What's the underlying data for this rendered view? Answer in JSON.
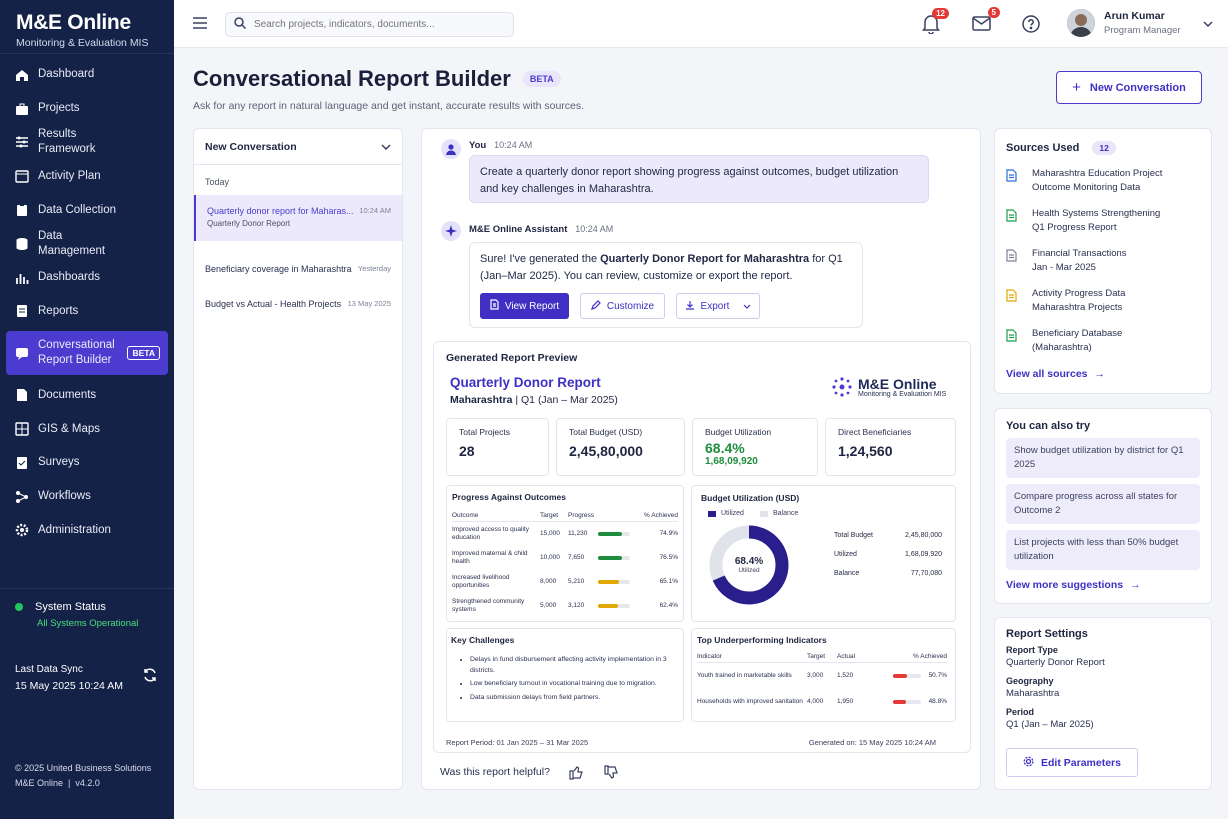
{
  "app": {
    "title": "M&E Online",
    "subtitle": "Monitoring & Evaluation MIS"
  },
  "nav": [
    {
      "label": "Dashboard",
      "icon": "home-icon"
    },
    {
      "label": "Projects",
      "icon": "briefcase-icon"
    },
    {
      "label": "Results Framework",
      "icon": "sliders-icon"
    },
    {
      "label": "Activity Plan",
      "icon": "calendar-icon"
    },
    {
      "label": "Data Collection",
      "icon": "clipboard-icon"
    },
    {
      "label": "Data Management",
      "icon": "database-icon"
    },
    {
      "label": "Dashboards",
      "icon": "bar-chart-icon"
    },
    {
      "label": "Reports",
      "icon": "report-icon"
    },
    {
      "label": "Conversational Report Builder",
      "icon": "chat-icon",
      "badge": "BETA"
    },
    {
      "label": "Documents",
      "icon": "document-icon"
    },
    {
      "label": "GIS & Maps",
      "icon": "map-icon"
    },
    {
      "label": "Surveys",
      "icon": "checklist-icon"
    },
    {
      "label": "Workflows",
      "icon": "workflow-icon"
    },
    {
      "label": "Administration",
      "icon": "gear-icon"
    }
  ],
  "system": {
    "label": "System Status",
    "status": "All Systems Operational",
    "sync_label": "Last Data Sync",
    "sync_time": "15 May 2025 10:24 AM"
  },
  "footer": {
    "copyright": "© 2025 United Business Solutions",
    "product": "M&E Online",
    "version": "v4.2.0"
  },
  "search": {
    "placeholder": "Search projects, indicators, documents..."
  },
  "notifications": {
    "count": "12"
  },
  "messages": {
    "count": "5"
  },
  "user": {
    "name": "Arun Kumar",
    "role": "Program Manager"
  },
  "page": {
    "title": "Conversational Report Builder",
    "badge": "BETA",
    "subtitle": "Ask for any report in natural language and get instant, accurate results with sources.",
    "new_button": "New Conversation"
  },
  "conversations": {
    "selector": "New Conversation",
    "group": "Today",
    "items": [
      {
        "title": "Quarterly donor report for Maharas...",
        "sub": "Quarterly Donor Report",
        "time": "10:24 AM"
      },
      {
        "title": "Beneficiary coverage in Maharashtra",
        "time": "Yesterday"
      },
      {
        "title": "Budget vs Actual - Health Projects",
        "time": "13 May 2025"
      }
    ]
  },
  "chat": {
    "user_name": "You",
    "user_time": "10:24 AM",
    "user_msg": "Create a quarterly donor report showing progress against outcomes, budget utilization and key challenges in Maharashtra.",
    "assistant_name": "M&E Online Assistant",
    "assistant_time": "10:24 AM",
    "assistant_pre": "Sure! I've generated the ",
    "assistant_bold": "Quarterly Donor Report for Maharashtra",
    "assistant_post": " for Q1 (Jan–Mar 2025). You can review, customize or export the report.",
    "view_btn": "View Report",
    "customize_btn": "Customize",
    "export_btn": "Export"
  },
  "preview": {
    "heading": "Generated Report Preview",
    "report_title": "Quarterly Donor Report",
    "region": "Maharashtra",
    "period": "Q1 (Jan – Mar 2025)",
    "logo_title": "M&E Online",
    "logo_sub": "Monitoring & Evaluation MIS",
    "kpis": [
      {
        "label": "Total Projects",
        "value": "28"
      },
      {
        "label": "Total Budget (USD)",
        "value": "2,45,80,000"
      },
      {
        "label": "Budget Utilization",
        "value": "68.4%",
        "sub": "1,68,09,920"
      },
      {
        "label": "Direct Beneficiaries",
        "value": "1,24,560"
      }
    ],
    "progress": {
      "title": "Progress Against Outcomes",
      "cols": [
        "Outcome",
        "Target",
        "Progress",
        "% Achieved"
      ],
      "rows": [
        {
          "outcome": "Improved access to quality education",
          "target": "15,000",
          "progress": "11,230",
          "pct": "74.9%",
          "pct_value": 74.9,
          "color": "#1e8e3e"
        },
        {
          "outcome": "Improved maternal & child health",
          "target": "10,000",
          "progress": "7,650",
          "pct": "76.5%",
          "pct_value": 76.5,
          "color": "#1e8e3e"
        },
        {
          "outcome": "Increased livelihood opportunities",
          "target": "8,000",
          "progress": "5,210",
          "pct": "65.1%",
          "pct_value": 65.1,
          "color": "#e0a800"
        },
        {
          "outcome": "Strengthened community systems",
          "target": "5,000",
          "progress": "3,120",
          "pct": "62.4%",
          "pct_value": 62.4,
          "color": "#e0a800"
        }
      ]
    },
    "budget": {
      "title": "Budget Utilization (USD)",
      "legend_used": "Utilized",
      "legend_balance": "Balance",
      "donut_value": "68.4%",
      "donut_value_num": 68.4,
      "donut_label": "Utilized",
      "rows": [
        {
          "label": "Total Budget",
          "value": "2,45,80,000"
        },
        {
          "label": "Utilized",
          "value": "1,68,09,920"
        },
        {
          "label": "Balance",
          "value": "77,70,080"
        }
      ]
    },
    "challenges": {
      "title": "Key Challenges",
      "items": [
        "Delays in fund disbursement affecting activity implementation in 3 districts.",
        "Low beneficiary turnout in vocational training due to migration.",
        "Data submission delays from field partners."
      ]
    },
    "under": {
      "title": "Top Underperforming Indicators",
      "cols": [
        "Indicator",
        "Target",
        "Actual",
        "% Achieved"
      ],
      "rows": [
        {
          "indicator": "Youth trained in marketable skills",
          "target": "3,000",
          "actual": "1,520",
          "pct": "50.7%",
          "pct_value": 50.7
        },
        {
          "indicator": "Households with improved sanitation",
          "target": "4,000",
          "actual": "1,950",
          "pct": "48.8%",
          "pct_value": 48.8
        }
      ]
    },
    "period_text": "Report Period: 01 Jan 2025 – 31 Mar 2025",
    "generated_text": "Generated on: 15 May 2025 10:24 AM"
  },
  "feedback": {
    "question": "Was this report helpful?"
  },
  "sources": {
    "title": "Sources Used",
    "count": "12",
    "items": [
      {
        "l1": "Maharashtra Education Project",
        "l2": "Outcome Monitoring Data",
        "color": "#2c6fd6"
      },
      {
        "l1": "Health Systems Strengthening",
        "l2": "Q1 Progress Report",
        "color": "#1e9e4a"
      },
      {
        "l1": "Financial Transactions",
        "l2": "Jan - Mar 2025",
        "color": "#7c8197"
      },
      {
        "l1": "Activity Progress Data",
        "l2": "Maharashtra Projects",
        "color": "#e0a800"
      },
      {
        "l1": "Beneficiary Database",
        "l2": "(Maharashtra)",
        "color": "#1e9e4a"
      }
    ],
    "view_all": "View all sources"
  },
  "suggestions": {
    "title": "You can also try",
    "items": [
      "Show budget utilization by district for Q1 2025",
      "Compare progress across all states for Outcome 2",
      "List projects with less than 50% budget utilization"
    ],
    "more": "View more suggestions"
  },
  "settings": {
    "title": "Report Settings",
    "type_label": "Report Type",
    "type_value": "Quarterly Donor Report",
    "geo_label": "Geography",
    "geo_value": "Maharashtra",
    "period_label": "Period",
    "period_value": "Q1 (Jan – Mar 2025)",
    "edit_btn": "Edit Parameters"
  }
}
